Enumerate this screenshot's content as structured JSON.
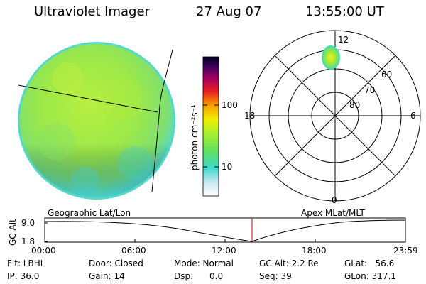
{
  "header": {
    "instrument": "Ultraviolet Imager",
    "date": "27 Aug 07",
    "time": "13:55:00 UT"
  },
  "colorbar": {
    "unit_label": "photon cm⁻²s⁻¹",
    "ticks": [
      "100",
      "10"
    ]
  },
  "polar_plot": {
    "mlt_labels": {
      "top": "12",
      "bottom": "0",
      "left": "18",
      "right": "6"
    },
    "lat_labels": [
      "60",
      "70",
      "80"
    ]
  },
  "orbit_panel": {
    "y_axis_label": "GC Alt",
    "y_ticks": [
      "9.0",
      "1.8"
    ],
    "left_title": "Geographic Lat/Lon",
    "right_title": "Apex MLat/MLT",
    "x_ticks": [
      "00:00",
      "06:00",
      "12:00",
      "18:00",
      "23:59"
    ]
  },
  "status": {
    "flt": "Flt: LBHL",
    "ip": "IP: 36.0",
    "door": "Door: Closed",
    "gain": "Gain: 14",
    "mode": "Mode: Normal",
    "dsp": "Dsp:      0.0",
    "gc_alt": "GC Alt: 2.2 Re",
    "seq": "Seq: 39",
    "glat": "GLat:   56.6",
    "glon": "GLon: 317.1"
  },
  "colors": {
    "disk_fill": "#9be84a",
    "disk_edge": "#55d8c8",
    "current_time_marker": "#cc0000"
  }
}
